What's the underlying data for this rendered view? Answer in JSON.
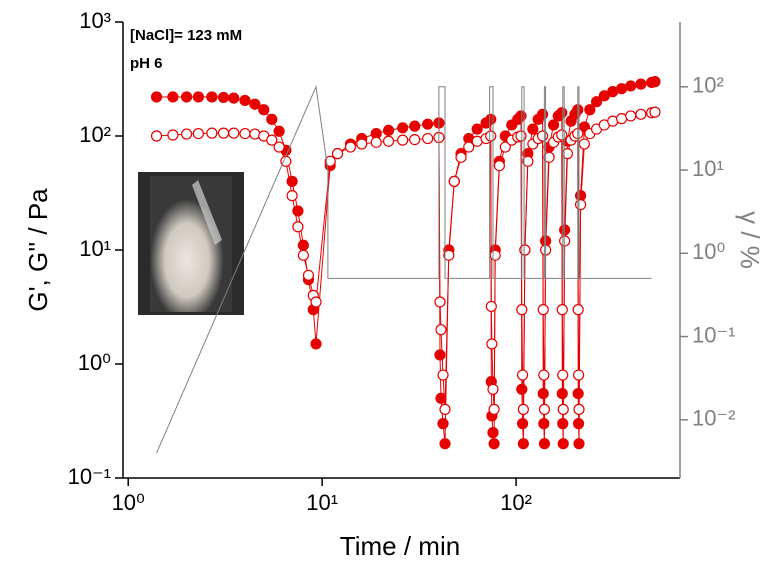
{
  "chart_data": {
    "type": "line",
    "xlabel": "Time / min",
    "ylabel": "G', G'' / Pa",
    "y2label": "γ / %",
    "annotations": [
      "[NaCl]= 123 mM",
      "pH 6"
    ],
    "log_x": true,
    "log_y": true,
    "log_y2": true,
    "xlim": [
      0.94,
      700
    ],
    "ylim": [
      0.1,
      1000
    ],
    "y2lim": [
      0.002,
      600
    ],
    "xticks": [
      {
        "value": 1,
        "label": "10⁰"
      },
      {
        "value": 10,
        "label": "10¹"
      },
      {
        "value": 100,
        "label": "10²"
      }
    ],
    "yticks": [
      {
        "value": 0.1,
        "label": "10⁻¹"
      },
      {
        "value": 1,
        "label": "10⁰"
      },
      {
        "value": 10,
        "label": "10¹"
      },
      {
        "value": 100,
        "label": "10²"
      },
      {
        "value": 1000,
        "label": "10³"
      }
    ],
    "y2ticks": [
      {
        "value": 0.01,
        "label": "10⁻²"
      },
      {
        "value": 0.1,
        "label": "10⁻¹"
      },
      {
        "value": 1,
        "label": "10⁰"
      },
      {
        "value": 10,
        "label": "10¹"
      },
      {
        "value": 100,
        "label": "10²"
      }
    ],
    "series": [
      {
        "marker": "filled",
        "color": "#e60000",
        "x": [
          1.4,
          1.7,
          2.0,
          2.3,
          2.7,
          3.1,
          3.5,
          4.0,
          4.5,
          5.0,
          5.5,
          6.0,
          6.5,
          7.0,
          7.5,
          8.0,
          8.5,
          9.0,
          9.3,
          11,
          12,
          14,
          16,
          19,
          22,
          26,
          30,
          35,
          40,
          40.5,
          41,
          42,
          43,
          45,
          48,
          52,
          57,
          63,
          70,
          74,
          74.5,
          75,
          76,
          77,
          78,
          82,
          88,
          95,
          102,
          106,
          107,
          108,
          109,
          111,
          115,
          122,
          130,
          137,
          138,
          139,
          140,
          142,
          148,
          156,
          165,
          172,
          173,
          174,
          175,
          178,
          184,
          192,
          201,
          208,
          209,
          210,
          211,
          215,
          225,
          240,
          260,
          285,
          315,
          350,
          390,
          440,
          500,
          520
        ],
        "values": [
          220,
          220,
          220,
          220,
          220,
          218,
          215,
          205,
          190,
          170,
          140,
          110,
          75,
          40,
          22,
          11,
          5.5,
          3,
          1.5,
          55,
          70,
          85,
          95,
          105,
          112,
          118,
          122,
          127,
          130,
          1.2,
          0.5,
          0.3,
          0.2,
          10,
          40,
          70,
          95,
          115,
          130,
          140,
          0.7,
          0.35,
          0.25,
          0.2,
          10,
          60,
          100,
          125,
          140,
          150,
          0.6,
          0.3,
          0.2,
          10,
          70,
          115,
          140,
          155,
          0.55,
          0.3,
          0.2,
          12,
          80,
          125,
          150,
          160,
          0.55,
          0.3,
          0.2,
          15,
          90,
          135,
          155,
          170,
          0.55,
          0.3,
          0.2,
          30,
          120,
          170,
          200,
          225,
          245,
          260,
          275,
          285,
          295,
          300
        ]
      },
      {
        "marker": "open",
        "color": "#e60000",
        "x": [
          1.4,
          1.7,
          2.0,
          2.3,
          2.7,
          3.1,
          3.5,
          4.0,
          4.5,
          5.0,
          5.5,
          6.0,
          6.5,
          7.0,
          7.5,
          8.0,
          8.5,
          9.0,
          9.3,
          11,
          12,
          14,
          16,
          19,
          22,
          26,
          30,
          35,
          40,
          40.5,
          41,
          42,
          43,
          45,
          48,
          52,
          57,
          63,
          70,
          74,
          74.5,
          75,
          76,
          77,
          78,
          82,
          88,
          95,
          102,
          106,
          107,
          108,
          109,
          111,
          115,
          122,
          130,
          137,
          138,
          139,
          140,
          142,
          148,
          156,
          165,
          172,
          173,
          174,
          175,
          178,
          184,
          192,
          201,
          208,
          209,
          210,
          211,
          215,
          225,
          240,
          260,
          285,
          315,
          350,
          390,
          440,
          500,
          520
        ],
        "values": [
          100,
          102,
          104,
          105,
          106,
          106,
          106,
          105,
          104,
          100,
          92,
          80,
          60,
          30,
          16,
          9,
          6,
          4,
          3.5,
          60,
          70,
          80,
          85,
          88,
          90,
          92,
          93,
          95,
          97,
          3.5,
          2.0,
          0.8,
          0.4,
          9,
          40,
          65,
          80,
          90,
          95,
          100,
          3.2,
          1.5,
          0.6,
          0.4,
          9,
          55,
          80,
          92,
          98,
          100,
          3,
          0.8,
          0.4,
          10,
          60,
          85,
          95,
          100,
          3,
          0.8,
          0.4,
          10,
          65,
          88,
          98,
          102,
          3,
          0.8,
          0.4,
          12,
          70,
          92,
          100,
          105,
          3,
          0.8,
          0.4,
          25,
          85,
          105,
          115,
          125,
          135,
          142,
          150,
          155,
          160,
          162
        ]
      },
      {
        "marker": "none",
        "color": "#808080",
        "axis": "y2",
        "x": [
          1.4,
          9.3,
          10.7,
          10.7,
          40,
          40,
          43,
          43,
          73,
          73,
          76,
          76,
          107,
          107,
          110,
          110,
          140,
          140,
          142,
          142,
          174,
          174,
          177,
          177,
          208,
          208,
          211,
          211,
          500
        ],
        "values": [
          0.004,
          100,
          10,
          0.5,
          0.5,
          100,
          100,
          0.5,
          0.5,
          100,
          100,
          0.5,
          0.5,
          100,
          100,
          0.5,
          0.5,
          100,
          100,
          0.5,
          0.5,
          100,
          100,
          0.5,
          0.5,
          100,
          100,
          0.5,
          0.5
        ]
      }
    ]
  }
}
